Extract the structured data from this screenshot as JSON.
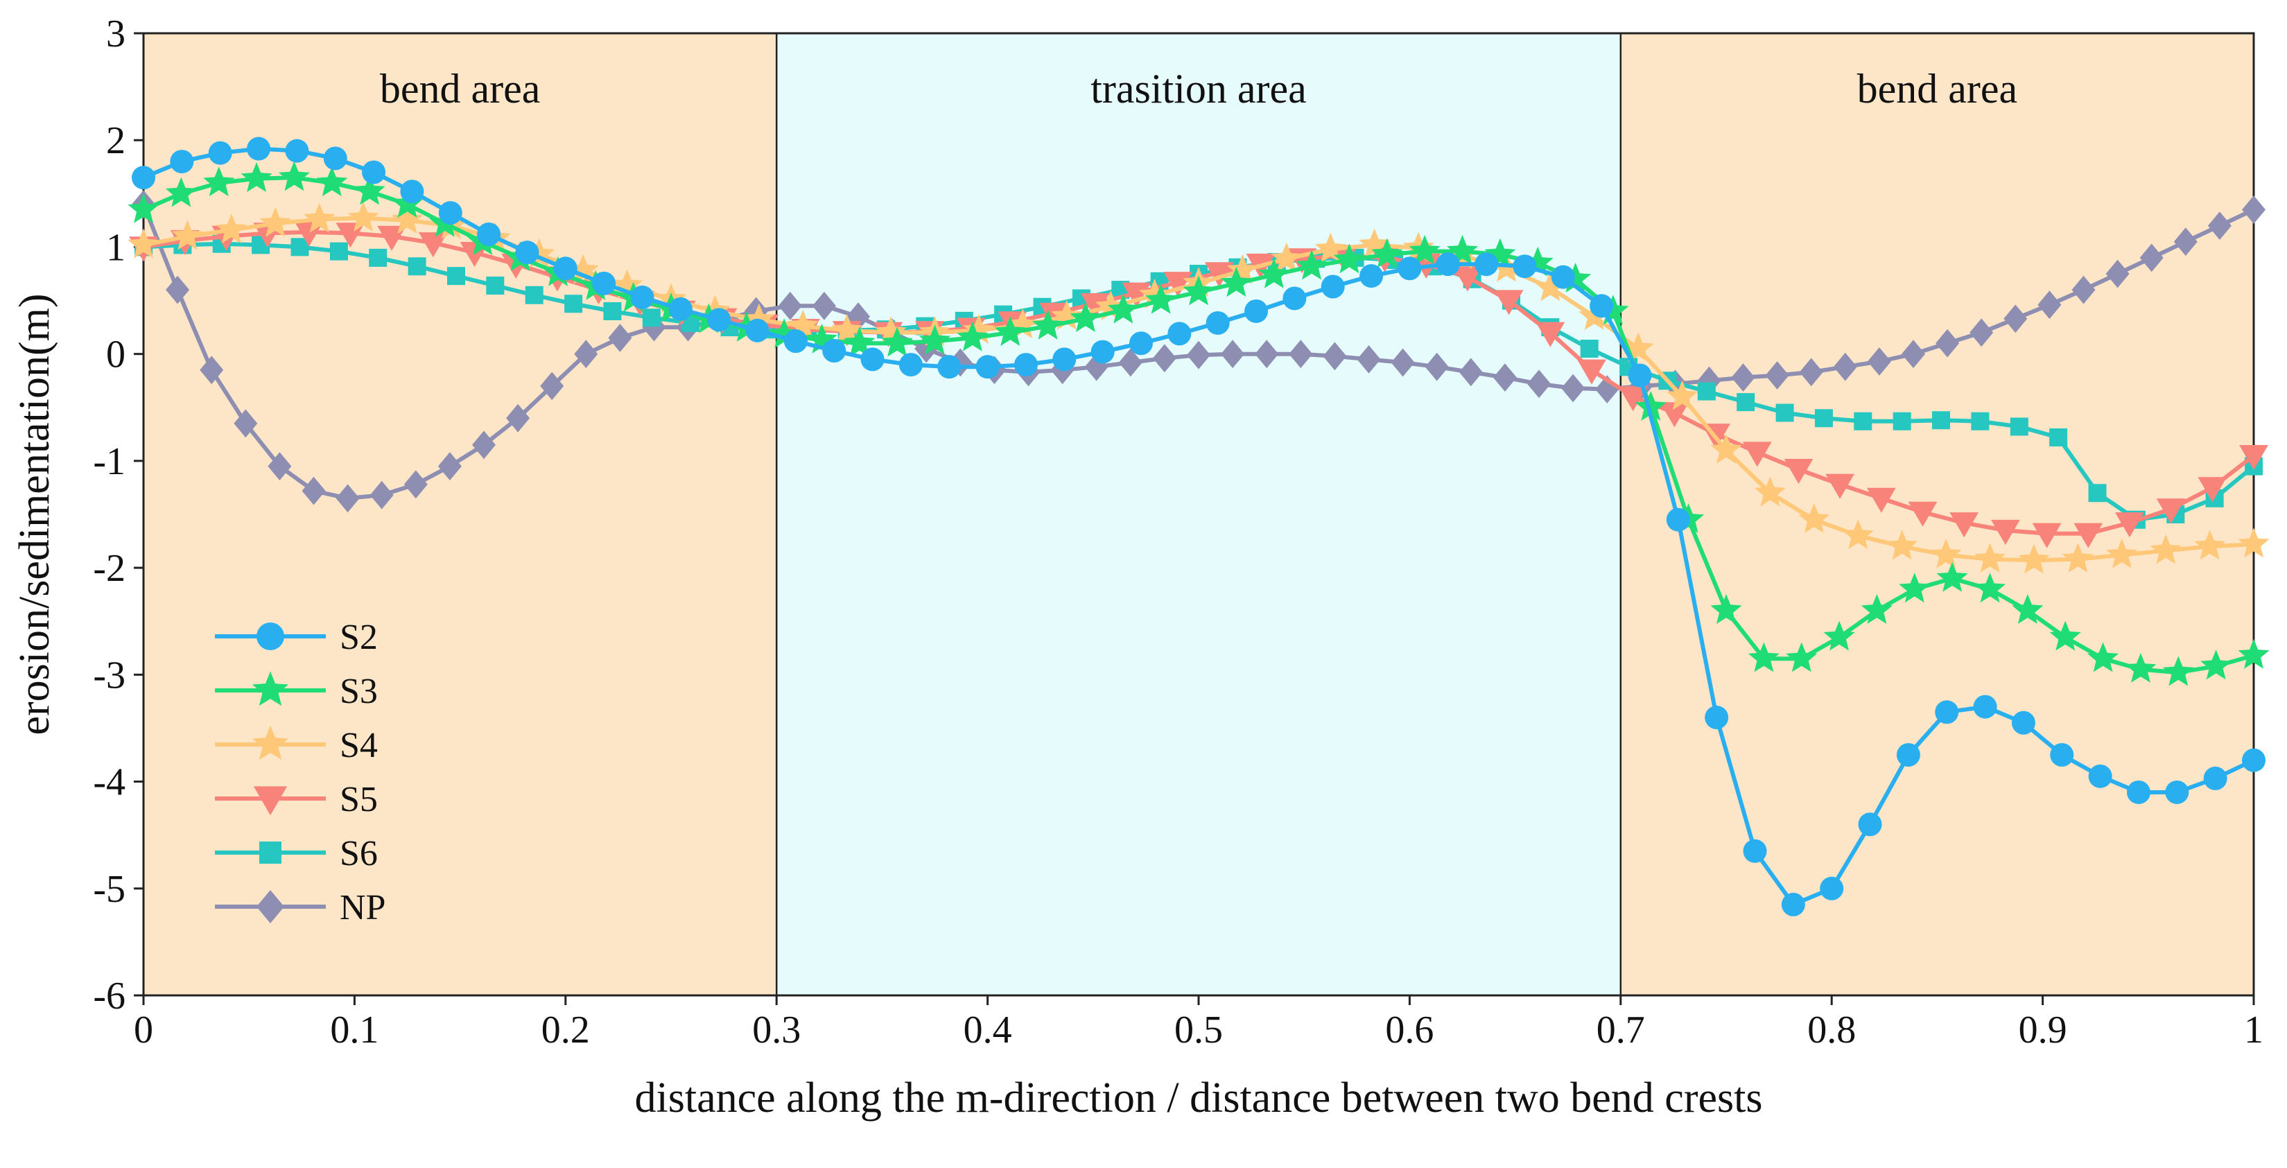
{
  "chart_data": {
    "type": "line",
    "title": "",
    "xlabel": "distance along the m-direction / distance between two bend crests",
    "ylabel": "erosion/sedimentation(m)",
    "xlim": [
      0,
      1
    ],
    "ylim": [
      -6,
      3
    ],
    "x_ticks": [
      0,
      0.1,
      0.2,
      0.3,
      0.4,
      0.5,
      0.6,
      0.7,
      0.8,
      0.9,
      1
    ],
    "x_tick_labels": [
      "0",
      "0.1",
      "0.2",
      "0.3",
      "0.4",
      "0.5",
      "0.6",
      "0.7",
      "0.8",
      "0.9",
      "1"
    ],
    "y_ticks": [
      3,
      2,
      1,
      0,
      -1,
      -2,
      -3,
      -4,
      -5,
      -6
    ],
    "y_tick_labels": [
      "3",
      "2",
      "1",
      "0",
      "-1",
      "-2",
      "-3",
      "-4",
      "-5",
      "-6"
    ],
    "legend_position": "lower-left",
    "regions": [
      {
        "label": "bend area",
        "x_start": 0,
        "x_end": 0.3,
        "color": "#fde6c8"
      },
      {
        "label": "trasition area",
        "x_start": 0.3,
        "x_end": 0.7,
        "color": "#e5fbfc"
      },
      {
        "label": "bend area",
        "x_start": 0.7,
        "x_end": 1,
        "color": "#fde6c8"
      }
    ],
    "series": [
      {
        "name": "S2",
        "color": "#29aef0",
        "marker": "circle",
        "values": [
          1.65,
          1.8,
          1.88,
          1.92,
          1.9,
          1.83,
          1.7,
          1.52,
          1.32,
          1.12,
          0.95,
          0.8,
          0.66,
          0.53,
          0.42,
          0.32,
          0.22,
          0.12,
          0.03,
          -0.05,
          -0.1,
          -0.12,
          -0.12,
          -0.1,
          -0.05,
          0.02,
          0.1,
          0.19,
          0.29,
          0.4,
          0.52,
          0.63,
          0.73,
          0.8,
          0.84,
          0.84,
          0.82,
          0.72,
          0.45,
          -0.2,
          -1.55,
          -3.4,
          -4.65,
          -5.15,
          -5.0,
          -4.4,
          -3.75,
          -3.35,
          -3.3,
          -3.45,
          -3.75,
          -3.95,
          -4.1,
          -4.1,
          -3.97,
          -3.8
        ]
      },
      {
        "name": "S3",
        "color": "#1fdc75",
        "marker": "star",
        "values": [
          1.35,
          1.5,
          1.6,
          1.64,
          1.65,
          1.6,
          1.52,
          1.4,
          1.22,
          1.05,
          0.9,
          0.76,
          0.63,
          0.52,
          0.42,
          0.32,
          0.24,
          0.18,
          0.13,
          0.1,
          0.1,
          0.12,
          0.15,
          0.2,
          0.26,
          0.33,
          0.41,
          0.5,
          0.58,
          0.66,
          0.74,
          0.82,
          0.88,
          0.93,
          0.96,
          0.96,
          0.93,
          0.85,
          0.7,
          0.4,
          -0.5,
          -1.55,
          -2.4,
          -2.85,
          -2.85,
          -2.65,
          -2.4,
          -2.2,
          -2.1,
          -2.2,
          -2.4,
          -2.65,
          -2.85,
          -2.95,
          -2.98,
          -2.92,
          -2.82
        ]
      },
      {
        "name": "S4",
        "color": "#fec878",
        "marker": "star",
        "values": [
          1.02,
          1.1,
          1.16,
          1.22,
          1.26,
          1.27,
          1.25,
          1.2,
          1.08,
          0.93,
          0.78,
          0.64,
          0.51,
          0.4,
          0.32,
          0.26,
          0.22,
          0.2,
          0.2,
          0.22,
          0.27,
          0.35,
          0.44,
          0.55,
          0.66,
          0.78,
          0.89,
          0.98,
          1.02,
          0.99,
          0.92,
          0.8,
          0.62,
          0.35,
          0.05,
          -0.4,
          -0.9,
          -1.3,
          -1.55,
          -1.7,
          -1.8,
          -1.88,
          -1.92,
          -1.93,
          -1.92,
          -1.88,
          -1.84,
          -1.8,
          -1.78
        ]
      },
      {
        "name": "S5",
        "color": "#f8837a",
        "marker": "triangle-down",
        "values": [
          1.0,
          1.06,
          1.1,
          1.13,
          1.14,
          1.13,
          1.1,
          1.04,
          0.95,
          0.84,
          0.72,
          0.6,
          0.49,
          0.4,
          0.33,
          0.27,
          0.23,
          0.21,
          0.2,
          0.21,
          0.24,
          0.3,
          0.38,
          0.47,
          0.57,
          0.67,
          0.76,
          0.84,
          0.89,
          0.92,
          0.9,
          0.84,
          0.72,
          0.5,
          0.2,
          -0.15,
          -0.4,
          -0.55,
          -0.75,
          -0.92,
          -1.08,
          -1.22,
          -1.35,
          -1.48,
          -1.58,
          -1.65,
          -1.68,
          -1.68,
          -1.58,
          -1.45,
          -1.25,
          -0.95
        ]
      },
      {
        "name": "S6",
        "color": "#26c7c1",
        "marker": "square",
        "values": [
          1.0,
          1.02,
          1.03,
          1.02,
          1.0,
          0.96,
          0.9,
          0.82,
          0.73,
          0.64,
          0.55,
          0.47,
          0.4,
          0.34,
          0.29,
          0.25,
          0.23,
          0.22,
          0.22,
          0.23,
          0.26,
          0.31,
          0.37,
          0.44,
          0.52,
          0.6,
          0.68,
          0.75,
          0.81,
          0.86,
          0.89,
          0.9,
          0.88,
          0.82,
          0.7,
          0.5,
          0.25,
          0.05,
          -0.12,
          -0.25,
          -0.35,
          -0.45,
          -0.55,
          -0.6,
          -0.63,
          -0.63,
          -0.62,
          -0.63,
          -0.68,
          -0.78,
          -1.3,
          -1.55,
          -1.5,
          -1.35,
          -1.05
        ]
      },
      {
        "name": "NP",
        "color": "#8e8eb2",
        "marker": "diamond",
        "values": [
          1.4,
          0.6,
          -0.15,
          -0.65,
          -1.05,
          -1.28,
          -1.35,
          -1.32,
          -1.22,
          -1.05,
          -0.85,
          -0.6,
          -0.3,
          0.0,
          0.15,
          0.25,
          0.25,
          0.32,
          0.4,
          0.45,
          0.45,
          0.35,
          0.2,
          0.05,
          -0.08,
          -0.15,
          -0.17,
          -0.15,
          -0.12,
          -0.08,
          -0.04,
          -0.01,
          0.0,
          0.0,
          0.0,
          -0.02,
          -0.05,
          -0.08,
          -0.12,
          -0.17,
          -0.22,
          -0.28,
          -0.32,
          -0.33,
          -0.3,
          -0.28,
          -0.25,
          -0.22,
          -0.2,
          -0.17,
          -0.12,
          -0.07,
          0.0,
          0.1,
          0.2,
          0.33,
          0.46,
          0.6,
          0.75,
          0.9,
          1.05,
          1.2,
          1.35
        ]
      }
    ]
  }
}
